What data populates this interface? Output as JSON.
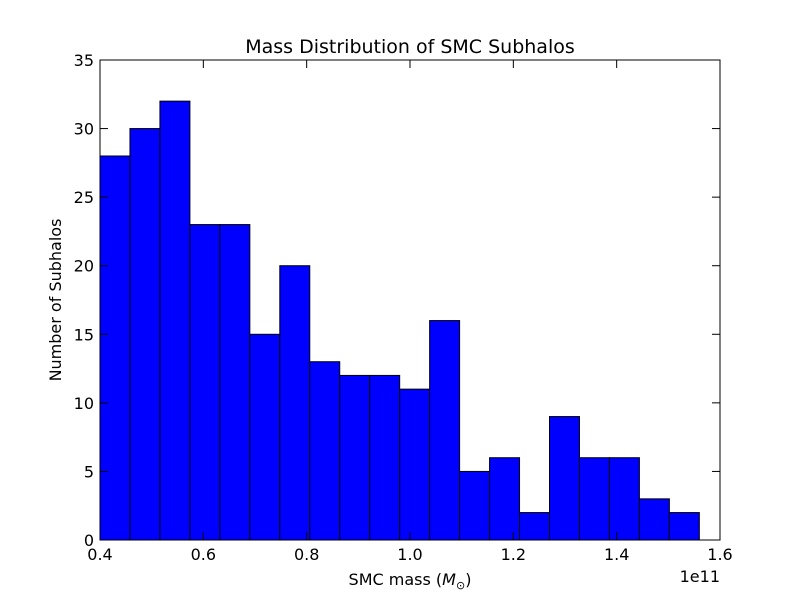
{
  "chart_data": {
    "type": "bar",
    "title": "Mass Distribution of SMC Subhalos",
    "xlabel": "SMC mass",
    "xlabel_unit_symbol": "M",
    "xlabel_unit_subscript": "⊙",
    "ylabel": "Number of Subhalos",
    "x_offset_text": "1e11",
    "xlim": [
      0.4,
      1.6
    ],
    "ylim": [
      0,
      35
    ],
    "x_ticks": [
      "0.4",
      "0.6",
      "0.8",
      "1.0",
      "1.2",
      "1.4",
      "1.6"
    ],
    "y_ticks": [
      "0",
      "5",
      "10",
      "15",
      "20",
      "25",
      "30",
      "35"
    ],
    "bin_edges": [
      0.4,
      0.458,
      0.516,
      0.574,
      0.632,
      0.69,
      0.748,
      0.806,
      0.864,
      0.922,
      0.98,
      1.038,
      1.096,
      1.154,
      1.212,
      1.27,
      1.328,
      1.386,
      1.444,
      1.502,
      1.56
    ],
    "values": [
      28,
      30,
      32,
      23,
      23,
      15,
      20,
      13,
      12,
      12,
      11,
      16,
      5,
      6,
      2,
      9,
      6,
      6,
      3,
      2
    ],
    "bar_color": "#0000ff",
    "edge_color": "#000000",
    "grid": false
  }
}
